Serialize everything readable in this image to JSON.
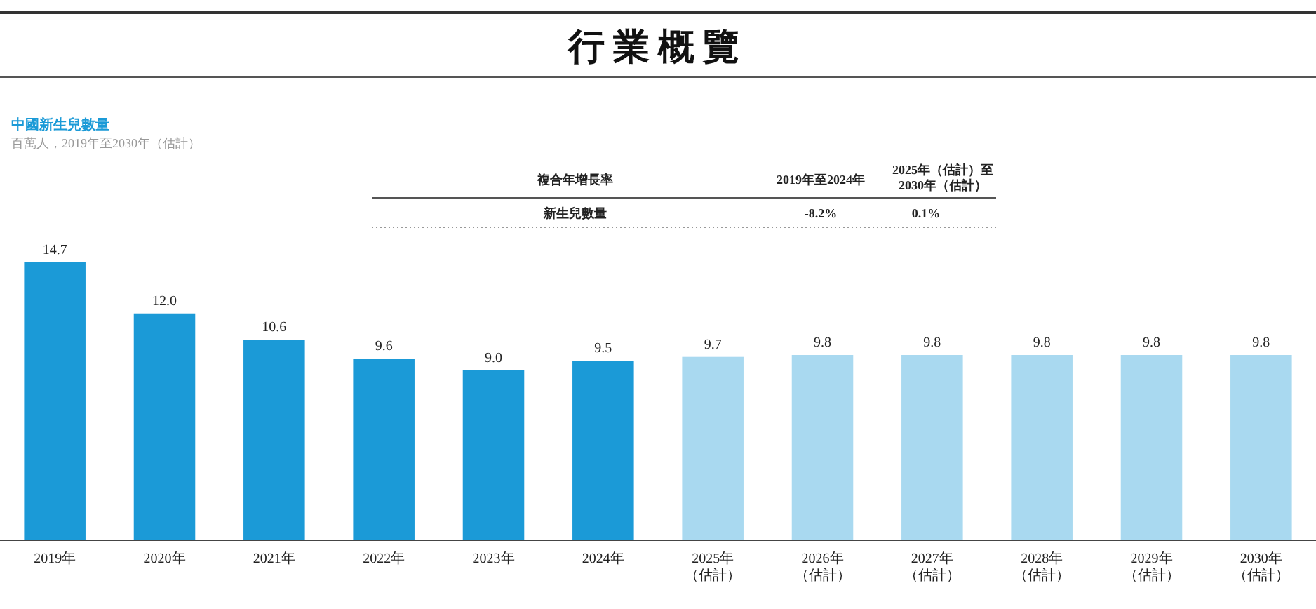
{
  "chart_data": {
    "type": "bar",
    "title": "行業概覽",
    "subtitle": "中國新生兒數量",
    "annotations": [
      "百萬人，2019年至2030年（估計）",
      "複合年增長率",
      "2019年至2024年",
      "2025年（估計）至2030年（估計）",
      "新生兒數量",
      "-8.2%",
      "0.1%"
    ],
    "categories": [
      "2019年",
      "2020年",
      "2021年",
      "2022年",
      "2023年",
      "2024年",
      "2025年（估計）",
      "2026年（估計）",
      "2027年（估計）",
      "2028年（估計）",
      "2029年（估計）",
      "2030年（估計）"
    ],
    "value_labels": [
      "14.7",
      "12.0",
      "10.6",
      "9.6",
      "9.0",
      "9.5",
      "9.7",
      "9.8",
      "9.8",
      "9.8",
      "9.8",
      "9.8"
    ],
    "values": [
      14.7,
      12.0,
      10.6,
      9.6,
      9.0,
      9.5,
      9.7,
      9.8,
      9.8,
      9.8,
      9.8,
      9.8
    ],
    "colors": [
      "#1b9ad7",
      "#1b9ad7",
      "#1b9ad7",
      "#1b9ad7",
      "#1b9ad7",
      "#1b9ad7",
      "#a9d9f0",
      "#a9d9f0",
      "#a9d9f0",
      "#a9d9f0",
      "#a9d9f0",
      "#a9d9f0"
    ],
    "tick_labels": "x"
  }
}
